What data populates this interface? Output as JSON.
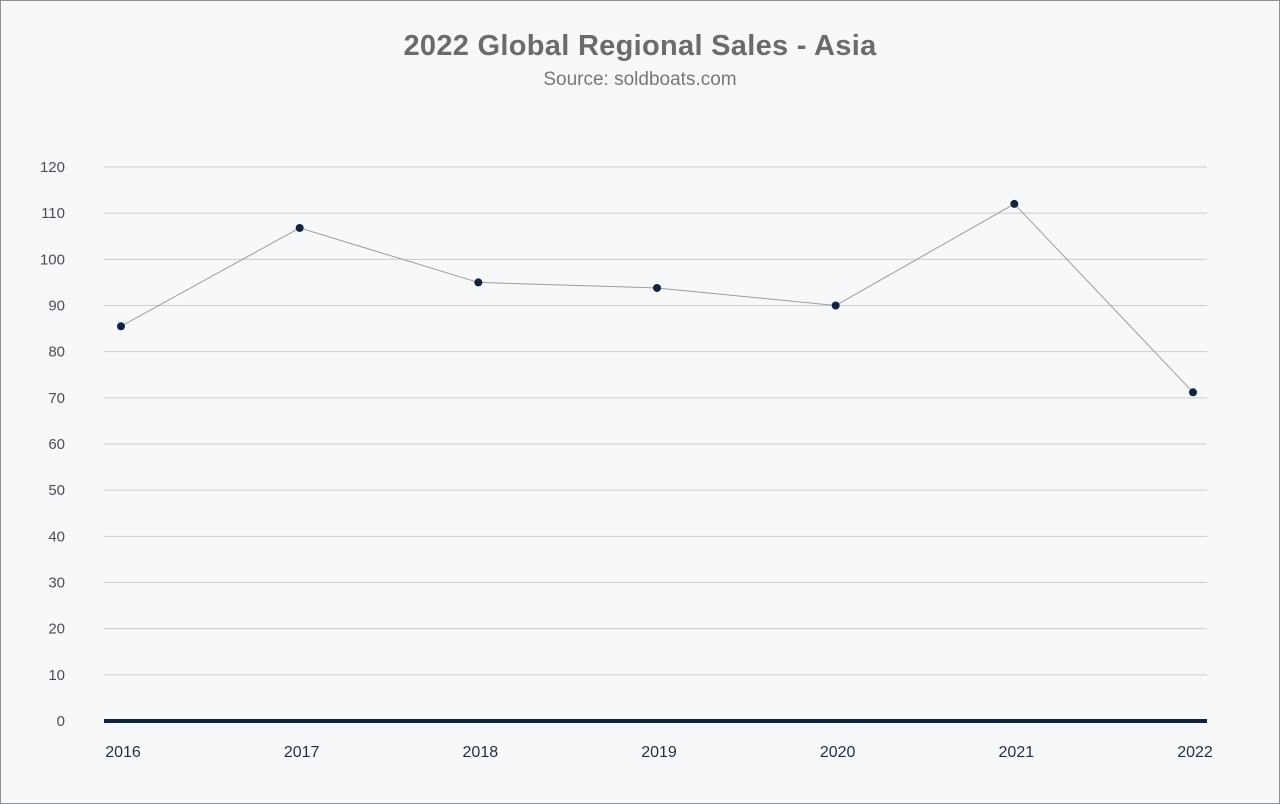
{
  "chart_data": {
    "type": "line",
    "title": "2022 Global Regional Sales - Asia",
    "subtitle": "Source: soldboats.com",
    "categories": [
      "2016",
      "2017",
      "2018",
      "2019",
      "2020",
      "2021",
      "2022"
    ],
    "series": [
      {
        "values": [
          85.5,
          106.8,
          95,
          93.8,
          90,
          112,
          71.2
        ]
      }
    ],
    "xlabel": "",
    "ylabel": "",
    "ylim": [
      0,
      120
    ],
    "yticks": [
      0,
      10,
      20,
      30,
      40,
      50,
      60,
      70,
      80,
      90,
      100,
      110,
      120
    ],
    "grid": true,
    "legend": "none",
    "colors": {
      "line": "#9a9da2",
      "marker": "#13233d",
      "baseline": "#13233d",
      "grid": "#c9ccd1",
      "title": "#6b6b6b"
    }
  }
}
